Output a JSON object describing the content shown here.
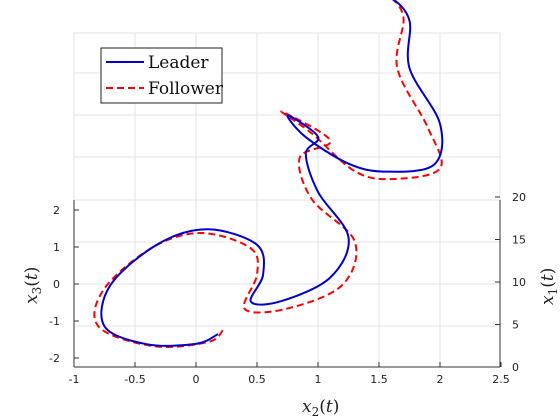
{
  "chart_data": {
    "type": "line",
    "projection": "3d",
    "grid": true,
    "legend_position": "top-left",
    "axes": {
      "x2": {
        "label": "x_2(t)",
        "range": [
          -1,
          2.5
        ],
        "ticks": [
          "-1",
          "-0.5",
          "0",
          "0.5",
          "1",
          "1.5",
          "2",
          "2.5"
        ]
      },
      "x3": {
        "label": "x_3(t)",
        "range": [
          -2.3,
          2.3
        ],
        "ticks": [
          "-2",
          "-1",
          "0",
          "1",
          "2"
        ]
      },
      "x1": {
        "label": "x_1(t)",
        "range": [
          0,
          20
        ],
        "ticks": [
          "0",
          "5",
          "10",
          "15",
          "20"
        ]
      }
    },
    "series": [
      {
        "name": "Leader",
        "color": "#0000cc",
        "style": "solid",
        "points": [
          [
            0.18,
            0.0,
            0.6
          ],
          [
            0.0,
            -0.4,
            1.2
          ],
          [
            -0.4,
            -0.55,
            1.8
          ],
          [
            -0.75,
            -0.25,
            2.6
          ],
          [
            -0.7,
            0.6,
            3.8
          ],
          [
            -0.3,
            1.4,
            5.2
          ],
          [
            0.1,
            1.5,
            6.4
          ],
          [
            0.5,
            0.9,
            7.2
          ],
          [
            0.55,
            0.0,
            7.6
          ],
          [
            0.45,
            -0.8,
            7.9
          ],
          [
            0.7,
            -0.9,
            8.4
          ],
          [
            1.1,
            -0.4,
            9.0
          ],
          [
            1.25,
            0.5,
            9.8
          ],
          [
            1.0,
            1.5,
            10.8
          ],
          [
            0.9,
            2.3,
            11.8
          ],
          [
            1.0,
            2.6,
            12.5
          ],
          [
            0.75,
            3.0,
            13.3
          ],
          [
            0.9,
            2.2,
            14.2
          ],
          [
            1.25,
            1.3,
            15.0
          ],
          [
            1.55,
            0.9,
            15.8
          ],
          [
            1.95,
            0.9,
            16.6
          ],
          [
            2.0,
            1.8,
            17.5
          ],
          [
            1.75,
            3.1,
            18.4
          ],
          [
            1.75,
            4.2,
            19.2
          ],
          [
            1.6,
            4.7,
            19.7
          ],
          [
            1.45,
            4.7,
            20.0
          ]
        ]
      },
      {
        "name": "Follower",
        "color": "#ff0000",
        "style": "dashed",
        "points": [
          [
            0.22,
            0.1,
            0.6
          ],
          [
            0.1,
            -0.35,
            1.2
          ],
          [
            -0.35,
            -0.6,
            1.8
          ],
          [
            -0.8,
            -0.25,
            2.6
          ],
          [
            -0.75,
            0.5,
            3.8
          ],
          [
            -0.35,
            1.3,
            5.2
          ],
          [
            0.05,
            1.4,
            6.4
          ],
          [
            0.45,
            0.8,
            7.2
          ],
          [
            0.5,
            0.0,
            7.6
          ],
          [
            0.4,
            -1.0,
            7.9
          ],
          [
            0.75,
            -1.1,
            8.4
          ],
          [
            1.2,
            -0.6,
            9.0
          ],
          [
            1.3,
            0.4,
            9.8
          ],
          [
            0.95,
            1.3,
            10.8
          ],
          [
            0.85,
            2.2,
            11.8
          ],
          [
            1.1,
            2.5,
            12.5
          ],
          [
            0.7,
            3.1,
            13.3
          ],
          [
            0.95,
            2.3,
            14.2
          ],
          [
            1.3,
            1.1,
            15.0
          ],
          [
            1.6,
            0.7,
            15.8
          ],
          [
            2.0,
            0.8,
            16.6
          ],
          [
            1.9,
            1.7,
            17.5
          ],
          [
            1.65,
            3.1,
            18.4
          ],
          [
            1.7,
            4.3,
            19.2
          ],
          [
            1.55,
            4.8,
            19.7
          ],
          [
            1.35,
            4.8,
            20.0
          ]
        ]
      }
    ]
  }
}
